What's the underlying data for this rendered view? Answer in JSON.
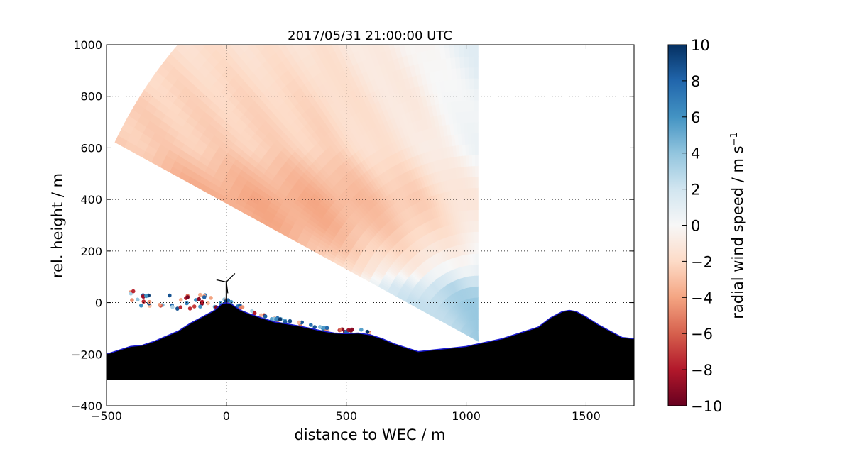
{
  "chart_data": {
    "type": "heatmap",
    "title": "2017/05/31 21:00:00 UTC",
    "xlabel": "distance to WEC / m",
    "ylabel": "rel. height / m",
    "xlim": [
      -500,
      1700
    ],
    "ylim": [
      -400,
      1000
    ],
    "x_ticks": [
      -500,
      0,
      500,
      1000,
      1500
    ],
    "y_ticks": [
      -400,
      -200,
      0,
      200,
      400,
      600,
      800,
      1000
    ],
    "x_tick_labels": [
      "−500",
      "0",
      "500",
      "1000",
      "1500"
    ],
    "y_tick_labels": [
      "−400",
      "−200",
      "0",
      "200",
      "400",
      "600",
      "800",
      "1000"
    ],
    "grid": true,
    "colorbar": {
      "label_text": "radial wind speed / m s",
      "label_exponent": "−1",
      "cmap": "RdBu",
      "range": [
        -10,
        10
      ],
      "ticks": [
        10,
        8,
        6,
        4,
        2,
        0,
        -2,
        -4,
        -6,
        -8,
        -10
      ],
      "tick_labels": [
        "10",
        "8",
        "6",
        "4",
        "2",
        "0",
        "−2",
        "−4",
        "−6",
        "−8",
        "−10"
      ]
    },
    "scan": {
      "origin": [
        1050,
        -150
      ],
      "max_range_m": 1700,
      "elevation_deg": [
        27,
        90
      ],
      "wind_profile": [
        {
          "height": -80,
          "speed": 0.5
        },
        {
          "height": 0,
          "speed": 0.8
        },
        {
          "height": 60,
          "speed": 0.3
        },
        {
          "height": 120,
          "speed": -2.0
        },
        {
          "height": 200,
          "speed": -3.2
        },
        {
          "height": 300,
          "speed": -3.9
        },
        {
          "height": 400,
          "speed": -4.0
        },
        {
          "height": 500,
          "speed": -3.4
        },
        {
          "height": 600,
          "speed": -2.6
        },
        {
          "height": 800,
          "speed": -2.3
        },
        {
          "height": 1000,
          "speed": -1.8
        }
      ],
      "eastward_trend": [
        {
          "x": -400,
          "offset": 0
        },
        {
          "x": 400,
          "offset": 0.3
        },
        {
          "x": 800,
          "offset": 1.5
        },
        {
          "x": 1100,
          "offset": 3.3
        },
        {
          "x": 1600,
          "offset": 3.8
        }
      ]
    },
    "terrain": [
      [
        -500,
        -200
      ],
      [
        -450,
        -185
      ],
      [
        -400,
        -170
      ],
      [
        -350,
        -165
      ],
      [
        -300,
        -150
      ],
      [
        -250,
        -130
      ],
      [
        -200,
        -110
      ],
      [
        -150,
        -80
      ],
      [
        -100,
        -55
      ],
      [
        -50,
        -30
      ],
      [
        -20,
        -5
      ],
      [
        0,
        0
      ],
      [
        20,
        -5
      ],
      [
        60,
        -30
      ],
      [
        100,
        -45
      ],
      [
        150,
        -60
      ],
      [
        200,
        -75
      ],
      [
        250,
        -82
      ],
      [
        300,
        -90
      ],
      [
        350,
        -100
      ],
      [
        400,
        -110
      ],
      [
        450,
        -118
      ],
      [
        500,
        -120
      ],
      [
        550,
        -118
      ],
      [
        600,
        -125
      ],
      [
        650,
        -140
      ],
      [
        700,
        -160
      ],
      [
        750,
        -175
      ],
      [
        800,
        -190
      ],
      [
        850,
        -185
      ],
      [
        900,
        -180
      ],
      [
        950,
        -175
      ],
      [
        1000,
        -170
      ],
      [
        1050,
        -160
      ],
      [
        1100,
        -150
      ],
      [
        1150,
        -140
      ],
      [
        1200,
        -125
      ],
      [
        1250,
        -110
      ],
      [
        1300,
        -95
      ],
      [
        1350,
        -60
      ],
      [
        1400,
        -35
      ],
      [
        1430,
        -30
      ],
      [
        1460,
        -35
      ],
      [
        1500,
        -55
      ],
      [
        1550,
        -85
      ],
      [
        1600,
        -110
      ],
      [
        1650,
        -135
      ],
      [
        1700,
        -140
      ]
    ],
    "terrain_base": -300,
    "turbine": {
      "x": 0,
      "hub_height": 80
    },
    "near_ground_scatter_x_range": [
      -400,
      600
    ]
  }
}
